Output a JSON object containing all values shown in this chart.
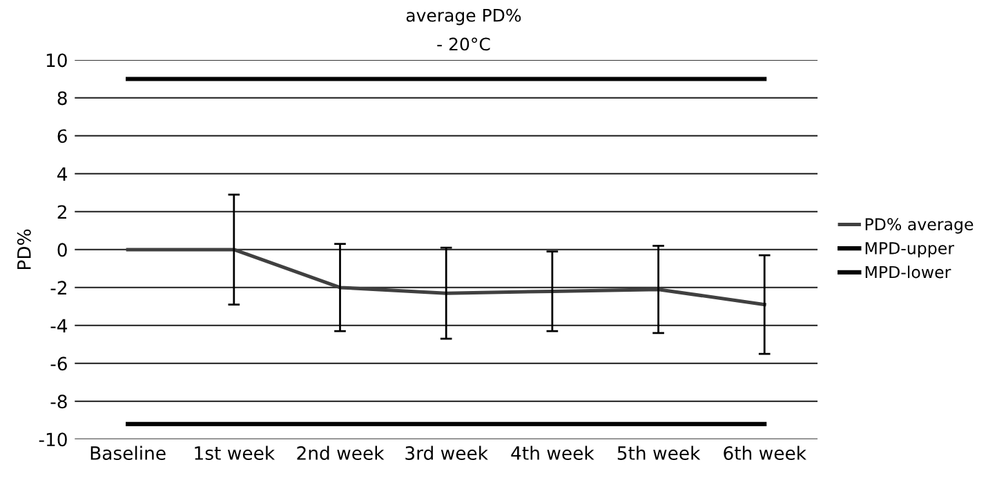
{
  "chart_data": {
    "type": "line",
    "title": "average PD%",
    "subtitle": "- 20°C",
    "ylabel": "PD%",
    "categories": [
      "Baseline",
      "1st week",
      "2nd week",
      "3rd week",
      "4th week",
      "5th week",
      "6th week"
    ],
    "series": [
      {
        "name": "PD% average",
        "color": "#404040",
        "values": [
          0,
          0,
          -2.0,
          -2.3,
          -2.2,
          -2.1,
          -2.9
        ],
        "errors": [
          null,
          2.9,
          2.3,
          2.4,
          2.1,
          2.3,
          2.6
        ]
      },
      {
        "name": "MPD-upper",
        "color": "#000000",
        "values": [
          9,
          9,
          9,
          9,
          9,
          9,
          9
        ]
      },
      {
        "name": "MPD-lower",
        "color": "#000000",
        "values": [
          -9.2,
          -9.2,
          -9.2,
          -9.2,
          -9.2,
          -9.2,
          -9.2
        ]
      }
    ],
    "ylim": [
      -10,
      10
    ],
    "yticks": [
      -10,
      -8,
      -6,
      -4,
      -2,
      0,
      2,
      4,
      6,
      8,
      10
    ],
    "grid": "y",
    "legend": "right",
    "marker": "none",
    "line_style": "solid"
  }
}
